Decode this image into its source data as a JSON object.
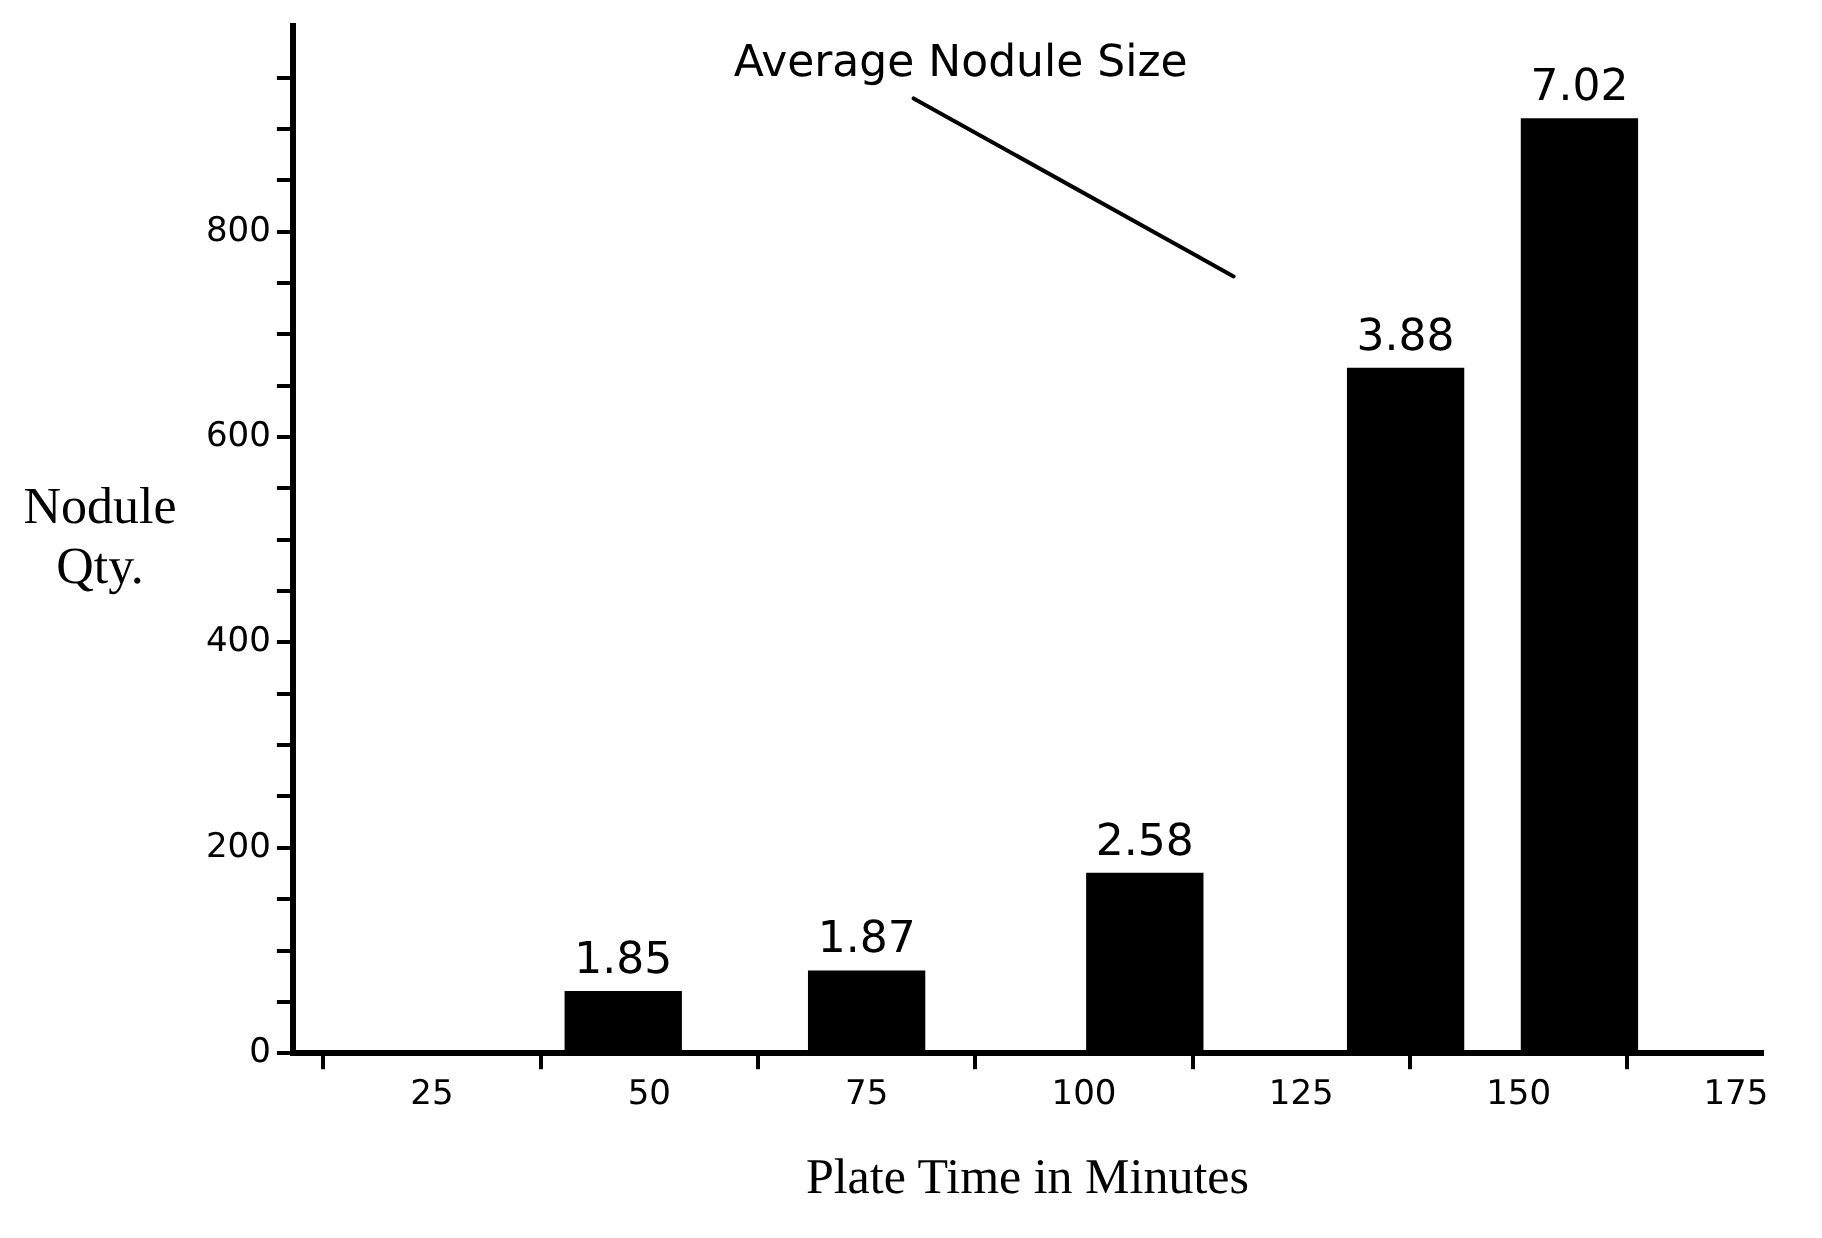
{
  "chart_data": {
    "type": "bar",
    "xlabel": "Plate Time in Minutes",
    "ylabel": "Nodule Qty.",
    "x": [
      47,
      75,
      107,
      137,
      157
    ],
    "values": [
      60,
      80,
      175,
      667,
      910
    ],
    "color": "#000000",
    "xlim": [
      9,
      178
    ],
    "xticks": [
      25,
      50,
      75,
      100,
      125,
      150,
      175
    ],
    "ylim": [
      0,
      1000
    ],
    "yticks": [
      0,
      {
        "value": 50,
        "label": null
      },
      {
        "value": 100,
        "label": null
      },
      {
        "value": 150,
        "label": null
      },
      200,
      {
        "value": 250,
        "label": null
      },
      {
        "value": 300,
        "label": null
      },
      {
        "value": 350,
        "label": null
      },
      400,
      {
        "value": 450,
        "label": null
      },
      {
        "value": 500,
        "label": null
      },
      {
        "value": 550,
        "label": null
      },
      600,
      {
        "value": 650,
        "label": null
      },
      {
        "value": 700,
        "label": null
      },
      {
        "value": 750,
        "label": null
      },
      800,
      {
        "value": 850,
        "label": null
      },
      {
        "value": 900,
        "label": null
      },
      {
        "value": 950,
        "label": null
      }
    ],
    "annotations": [
      "Average Nodule Size",
      {
        "text": "1.85",
        "x": 47,
        "y": 60
      },
      {
        "text": "1.87",
        "x": 75,
        "y": 80
      },
      {
        "text": "2.58",
        "x": 107,
        "y": 175
      },
      {
        "text": "3.88",
        "x": 137,
        "y": 667
      },
      {
        "text": "7.02",
        "x": 157,
        "y": 910
      }
    ],
    "grid": false,
    "legend": false
  }
}
